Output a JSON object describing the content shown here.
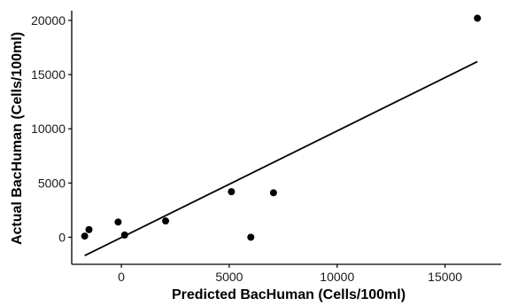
{
  "chart_data": {
    "type": "scatter",
    "title": "",
    "xlabel": "Predicted BacHuman (Cells/100ml)",
    "ylabel": "Actual BacHuman (Cells/100ml)",
    "xlim": [
      -2300,
      17600
    ],
    "ylim": [
      -2500,
      20900
    ],
    "x_ticks": [
      0,
      5000,
      10000,
      15000
    ],
    "x_tick_labels": [
      "0",
      "5000",
      "10000",
      "15000"
    ],
    "y_ticks": [
      0,
      5000,
      10000,
      15000,
      20000
    ],
    "y_tick_labels": [
      "0",
      "5000",
      "10000",
      "15000",
      "20000"
    ],
    "grid": false,
    "legend": "none",
    "points": [
      {
        "x": -1700,
        "y": 100
      },
      {
        "x": -1500,
        "y": 700
      },
      {
        "x": -150,
        "y": 1400
      },
      {
        "x": 150,
        "y": 200
      },
      {
        "x": 2050,
        "y": 1500
      },
      {
        "x": 5100,
        "y": 4200
      },
      {
        "x": 6000,
        "y": 0
      },
      {
        "x": 7050,
        "y": 4100
      },
      {
        "x": 16500,
        "y": 20200
      }
    ],
    "trend_line": {
      "x": [
        -1700,
        16500
      ],
      "y": [
        -1700,
        16200
      ]
    },
    "colors": {
      "points": "#000000",
      "line": "#000000",
      "axis": "#000000"
    }
  }
}
